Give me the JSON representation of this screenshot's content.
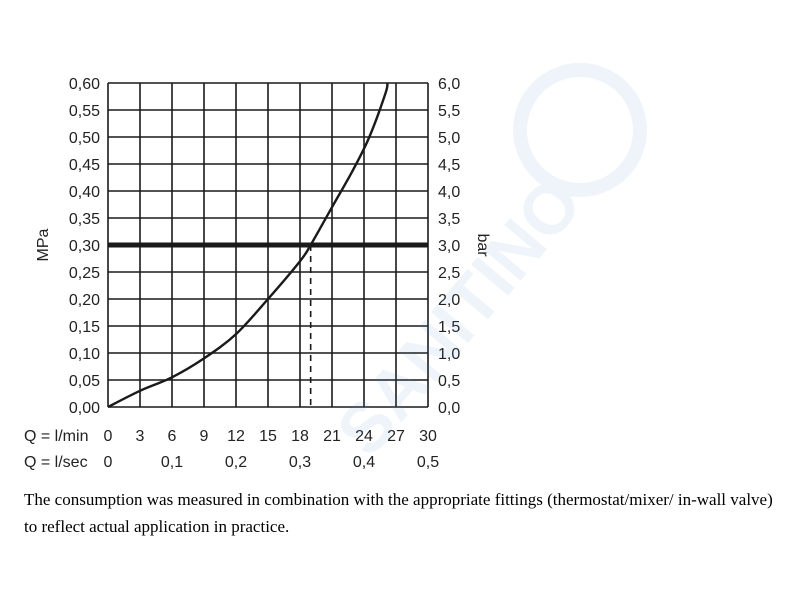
{
  "chart_data": {
    "type": "line",
    "title": "",
    "ylabel_left": "MPa",
    "ylabel_right": "bar",
    "x_rows": [
      {
        "label": "Q = l/min",
        "ticks": [
          {
            "value": 0,
            "label": "0"
          },
          {
            "value": 3,
            "label": "3"
          },
          {
            "value": 6,
            "label": "6"
          },
          {
            "value": 9,
            "label": "9"
          },
          {
            "value": 12,
            "label": "12"
          },
          {
            "value": 15,
            "label": "15"
          },
          {
            "value": 18,
            "label": "18"
          },
          {
            "value": 21,
            "label": "21"
          },
          {
            "value": 24,
            "label": "24"
          },
          {
            "value": 27,
            "label": "27"
          },
          {
            "value": 30,
            "label": "30"
          }
        ]
      },
      {
        "label": "Q = l/sec",
        "ticks": [
          {
            "value": 0,
            "label": "0"
          },
          {
            "value": 6,
            "label": "0,1"
          },
          {
            "value": 12,
            "label": "0,2"
          },
          {
            "value": 18,
            "label": "0,3"
          },
          {
            "value": 24,
            "label": "0,4"
          },
          {
            "value": 30,
            "label": "0,5"
          }
        ]
      }
    ],
    "xlim": [
      0,
      30
    ],
    "ylim": [
      0,
      0.6
    ],
    "y_ticks_left": [
      "0,00",
      "0,05",
      "0,10",
      "0,15",
      "0,20",
      "0,25",
      "0,30",
      "0,35",
      "0,40",
      "0,45",
      "0,50",
      "0,55",
      "0,60"
    ],
    "y_ticks_right": [
      "0,0",
      "0,5",
      "1,0",
      "1,5",
      "2,0",
      "2,5",
      "3,0",
      "3,5",
      "4,0",
      "4,5",
      "5,0",
      "5,5",
      "6,0"
    ],
    "grid": true,
    "series": [
      {
        "x": [
          0,
          3,
          6,
          9,
          12,
          15,
          18,
          19,
          21,
          23,
          24.5,
          26,
          26.2
        ],
        "y": [
          0,
          0.03,
          0.055,
          0.09,
          0.135,
          0.2,
          0.27,
          0.3,
          0.37,
          0.44,
          0.5,
          0.58,
          0.6
        ],
        "color": "#1a1a1a"
      }
    ],
    "reference_line": {
      "y": 0.3
    },
    "marker_line": {
      "x": 19,
      "y": 0.3,
      "style": "dashed"
    }
  },
  "caption": "The consumption was measured in combination with the appropriate fittings (thermostat/mixer/ in-wall valve) to reflect actual application in practice.",
  "watermark_text": "SANITINO"
}
